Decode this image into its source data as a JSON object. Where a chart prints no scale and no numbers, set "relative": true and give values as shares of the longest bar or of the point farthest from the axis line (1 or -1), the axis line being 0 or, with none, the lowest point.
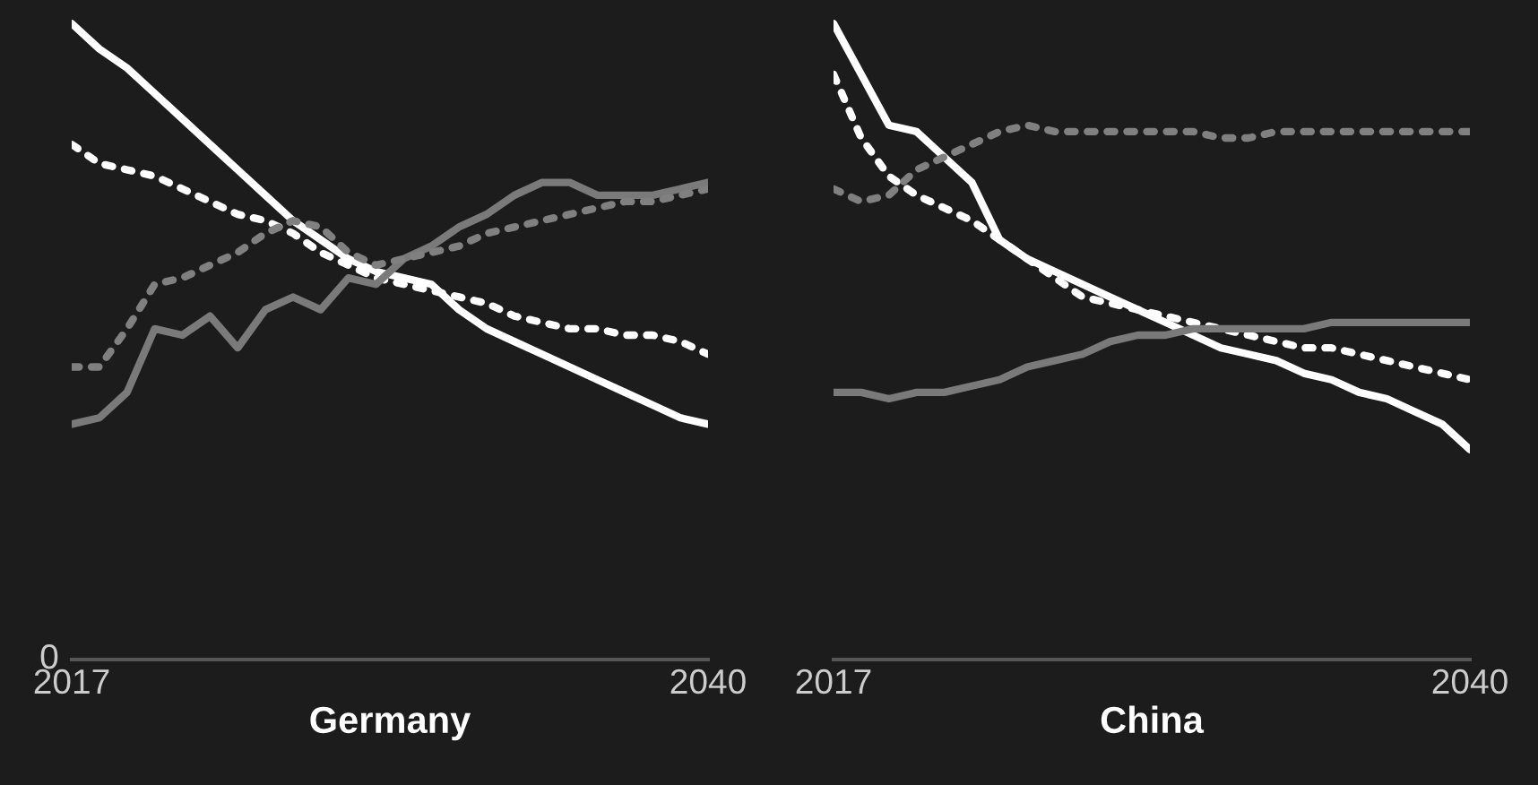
{
  "chart_data": [
    {
      "type": "line",
      "relative": true,
      "xlabel": "Germany",
      "annotations": [
        "0"
      ],
      "tick_labels": "x",
      "categories": [
        "2017",
        null,
        null,
        null,
        null,
        null,
        null,
        null,
        null,
        null,
        null,
        null,
        null,
        null,
        null,
        null,
        null,
        null,
        null,
        null,
        null,
        null,
        null,
        "2040"
      ],
      "series": [
        {
          "color": "#ffffff",
          "line_style": "solid",
          "values": [
            1.0,
            0.96,
            0.93,
            0.89,
            0.85,
            0.81,
            0.77,
            0.73,
            0.69,
            0.66,
            0.63,
            0.61,
            0.6,
            0.59,
            0.55,
            0.52,
            0.5,
            0.48,
            0.46,
            0.44,
            0.42,
            0.4,
            0.38,
            0.37
          ]
        },
        {
          "color": "#ffffff",
          "line_style": "dotted",
          "values": [
            0.81,
            0.78,
            0.77,
            0.76,
            0.74,
            0.72,
            0.7,
            0.69,
            0.67,
            0.64,
            0.62,
            0.6,
            0.59,
            0.58,
            0.57,
            0.56,
            0.54,
            0.53,
            0.52,
            0.52,
            0.51,
            0.51,
            0.5,
            0.48
          ]
        },
        {
          "color": "#7a7a7a",
          "line_style": "solid",
          "values": [
            0.37,
            0.38,
            0.42,
            0.52,
            0.51,
            0.54,
            0.49,
            0.55,
            0.57,
            0.55,
            0.6,
            0.59,
            0.63,
            0.65,
            0.68,
            0.7,
            0.73,
            0.75,
            0.75,
            0.73,
            0.73,
            0.73,
            0.74,
            0.75
          ]
        },
        {
          "color": "#808080",
          "line_style": "dotted",
          "values": [
            0.46,
            0.46,
            0.52,
            0.59,
            0.6,
            0.62,
            0.64,
            0.67,
            0.69,
            0.68,
            0.64,
            0.62,
            0.63,
            0.64,
            0.65,
            0.67,
            0.68,
            0.69,
            0.7,
            0.71,
            0.72,
            0.72,
            0.73,
            0.74
          ]
        }
      ]
    },
    {
      "type": "line",
      "relative": true,
      "xlabel": "China",
      "tick_labels": "x",
      "categories": [
        "2017",
        null,
        null,
        null,
        null,
        null,
        null,
        null,
        null,
        null,
        null,
        null,
        null,
        null,
        null,
        null,
        null,
        null,
        null,
        null,
        null,
        null,
        null,
        "2040"
      ],
      "series": [
        {
          "color": "#ffffff",
          "line_style": "solid",
          "values": [
            1.0,
            0.92,
            0.84,
            0.83,
            0.79,
            0.75,
            0.66,
            0.63,
            0.61,
            0.59,
            0.57,
            0.55,
            0.53,
            0.51,
            0.49,
            0.48,
            0.47,
            0.45,
            0.44,
            0.42,
            0.41,
            0.39,
            0.37,
            0.33
          ]
        },
        {
          "color": "#ffffff",
          "line_style": "dotted",
          "values": [
            0.92,
            0.82,
            0.76,
            0.73,
            0.71,
            0.69,
            0.66,
            0.63,
            0.6,
            0.57,
            0.56,
            0.55,
            0.54,
            0.53,
            0.52,
            0.51,
            0.5,
            0.49,
            0.49,
            0.48,
            0.47,
            0.46,
            0.45,
            0.44
          ]
        },
        {
          "color": "#808080",
          "line_style": "dotted",
          "values": [
            0.74,
            0.72,
            0.73,
            0.77,
            0.79,
            0.81,
            0.83,
            0.84,
            0.83,
            0.83,
            0.83,
            0.83,
            0.83,
            0.83,
            0.82,
            0.82,
            0.83,
            0.83,
            0.83,
            0.83,
            0.83,
            0.83,
            0.83,
            0.83
          ]
        },
        {
          "color": "#7a7a7a",
          "line_style": "solid",
          "values": [
            0.42,
            0.42,
            0.41,
            0.42,
            0.42,
            0.43,
            0.44,
            0.46,
            0.47,
            0.48,
            0.5,
            0.51,
            0.51,
            0.52,
            0.52,
            0.52,
            0.52,
            0.52,
            0.53,
            0.53,
            0.53,
            0.53,
            0.53,
            0.53
          ]
        }
      ]
    }
  ]
}
